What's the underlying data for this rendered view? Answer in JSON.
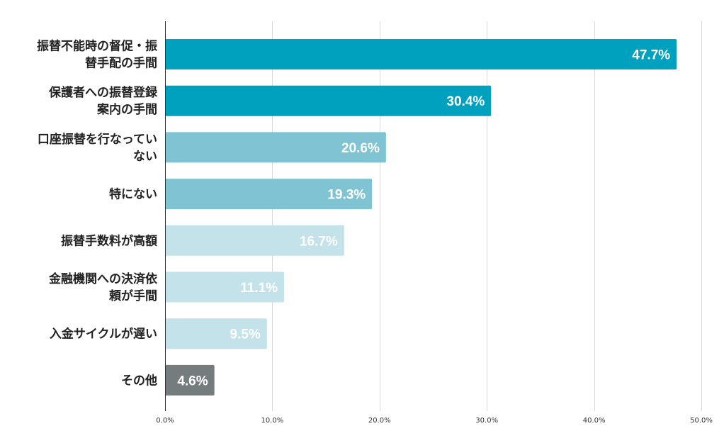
{
  "chart_data": {
    "type": "bar",
    "orientation": "horizontal",
    "categories": [
      [
        "振替不能時の督促・振",
        "替手配の手間"
      ],
      [
        "保護者への振替登録",
        "案内の手間"
      ],
      [
        "口座振替を行なってい",
        "ない"
      ],
      [
        "特にない"
      ],
      [
        "振替手数料が高額"
      ],
      [
        "金融機関への決済依",
        "頼が手間"
      ],
      [
        "入金サイクルが遅い"
      ],
      [
        "その他"
      ]
    ],
    "values": [
      47.7,
      30.4,
      20.6,
      19.3,
      16.7,
      11.1,
      9.5,
      4.6
    ],
    "value_labels": [
      "47.7%",
      "30.4%",
      "20.6%",
      "19.3%",
      "16.7%",
      "11.1%",
      "9.5%",
      "4.6%"
    ],
    "bar_colors": [
      "#00a1bf",
      "#00a1bf",
      "#80c4d3",
      "#80c4d3",
      "#c4e2ea",
      "#c4e2ea",
      "#c4e2ea",
      "#747c7e"
    ],
    "xlim": [
      0,
      50
    ],
    "x_ticks": [
      0,
      10,
      20,
      30,
      40,
      50
    ],
    "x_tick_labels": [
      "0.0%",
      "10.0%",
      "20.0%",
      "30.0%",
      "40.0%",
      "50.0%"
    ],
    "grid": true,
    "title": "",
    "xlabel": "",
    "ylabel": ""
  }
}
